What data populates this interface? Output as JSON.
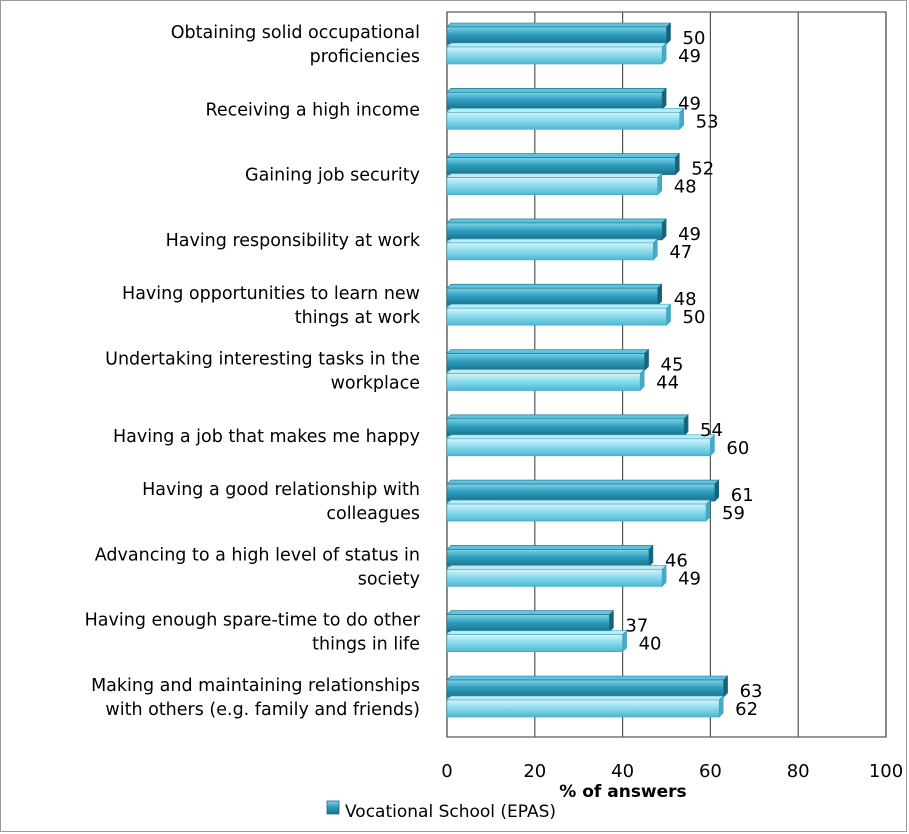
{
  "chart_data": {
    "type": "bar",
    "orientation": "horizontal",
    "categories": [
      [
        "Obtaining solid occupational",
        "proficiencies"
      ],
      [
        "Receiving a high income"
      ],
      [
        "Gaining job security"
      ],
      [
        "Having responsibility at work"
      ],
      [
        "Having opportunities to learn new",
        "things at work"
      ],
      [
        "Undertaking interesting tasks in the",
        "workplace"
      ],
      [
        "Having a job that makes me happy"
      ],
      [
        "Having a good relationship with",
        "colleagues"
      ],
      [
        "Advancing to a high level of status  in",
        "society"
      ],
      [
        "Having enough spare-time to do other",
        "things in life"
      ],
      [
        "Making and maintaining relationships",
        "with others (e.g. family and friends)"
      ]
    ],
    "series": [
      {
        "name": "Vocational School (EPAS)",
        "values": [
          50,
          49,
          52,
          49,
          48,
          45,
          54,
          61,
          46,
          37,
          63
        ],
        "color": "#2e9fbf"
      },
      {
        "name": "",
        "values": [
          49,
          53,
          48,
          47,
          50,
          44,
          60,
          59,
          49,
          40,
          62
        ],
        "color": "#7dd8ea"
      }
    ],
    "xlabel": "% of answers",
    "xlim": [
      0,
      100
    ],
    "xticks": [
      "0",
      "20",
      "40",
      "60",
      "80",
      "100"
    ],
    "grid": true,
    "legend_placement": "bottom"
  },
  "legend": {
    "label": "Vocational School (EPAS)"
  }
}
